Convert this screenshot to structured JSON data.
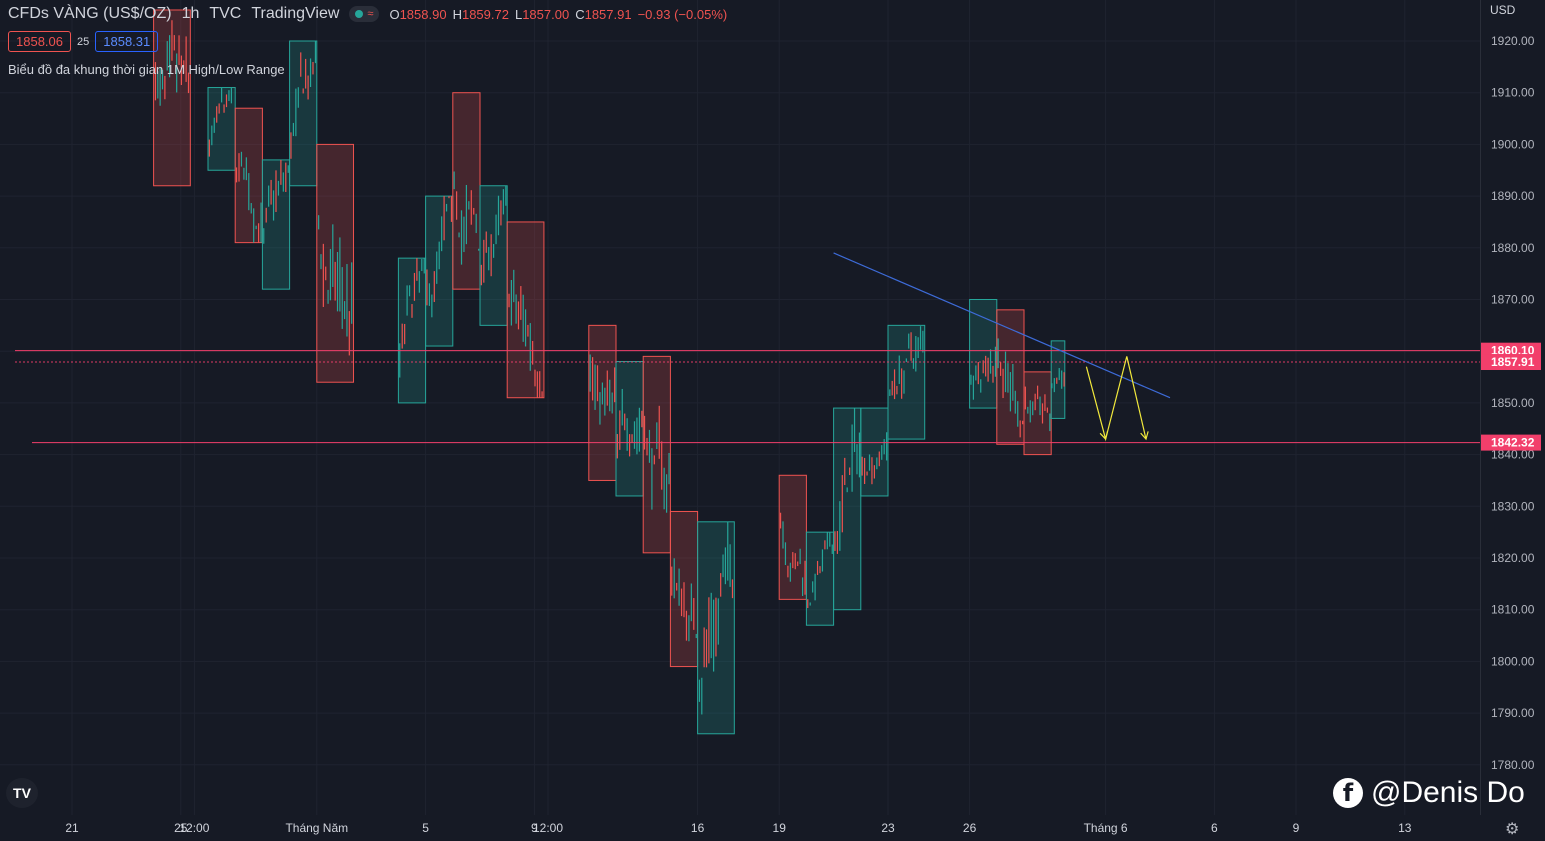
{
  "header": {
    "symbol": "CFDs VÀNG (US$/OZ)",
    "interval": "1h",
    "source": "TVC",
    "platform": "TradingView",
    "ohlc": {
      "o_label": "O",
      "o_value": "1858.90",
      "h_label": "H",
      "h_value": "1859.72",
      "l_label": "L",
      "l_value": "1857.00",
      "c_label": "C",
      "c_value": "1857.91",
      "change": "−0.93 (−0.05%)"
    },
    "sell_price": "1858.06",
    "spread": "25",
    "buy_price": "1858.31",
    "indicator": "Biểu đồ đa khung thời gian 1M High/Low Range"
  },
  "currency": "USD",
  "watermark": "@Denis Do",
  "colors": {
    "up": "#26a69a",
    "down": "#ef5350",
    "level_line": "#f23f6b",
    "trendline": "#3d6bd8",
    "arrows": "#f2e93c",
    "background": "#161a25",
    "grid": "#1f2330"
  },
  "icons": [
    "tradingview-logo-icon",
    "facebook-icon",
    "settings-gear-icon",
    "status-dot-icon",
    "wave-icon"
  ],
  "chart_data": {
    "type": "candlestick",
    "title": "CFDs VÀNG (US$/OZ) 1h",
    "ylim": [
      1775,
      1926
    ],
    "y_ticks": [
      1920,
      1910,
      1900,
      1890,
      1880,
      1870,
      1860,
      1850,
      1840,
      1830,
      1820,
      1810,
      1800,
      1790,
      1780
    ],
    "y_tick_labels": [
      "1920.00",
      "1910.00",
      "1900.00",
      "1890.00",
      "1880.00",
      "1870.00",
      "1860.00",
      "1850.00",
      "1840.00",
      "1830.00",
      "1820.00",
      "1810.00",
      "1800.00",
      "1790.00",
      "1780.00"
    ],
    "x_ticks": [
      "21",
      "25",
      "12:00",
      "Tháng Năm",
      "5",
      "9",
      "12:00",
      "16",
      "19",
      "23",
      "26",
      "Tháng 6",
      "6",
      "9",
      "13"
    ],
    "x_tick_positions_days": [
      0,
      4,
      4.5,
      9,
      13,
      17,
      17.5,
      23,
      26,
      30,
      33,
      38,
      42,
      45,
      49
    ],
    "last_bar_day": 36,
    "boxes": [
      {
        "open": "2021-04-24",
        "high": 1926,
        "low": 1892,
        "dir": "down"
      },
      {
        "open": "2021-04-26",
        "high": 1911,
        "low": 1895,
        "dir": "up"
      },
      {
        "open": "2021-04-27",
        "high": 1907,
        "low": 1881,
        "dir": "down"
      },
      {
        "open": "2021-04-28",
        "high": 1897,
        "low": 1872,
        "dir": "up"
      },
      {
        "open": "2021-04-29",
        "high": 1920,
        "low": 1892,
        "dir": "up"
      },
      {
        "open": "2021-04-30",
        "high": 1900,
        "low": 1854,
        "dir": "down"
      },
      {
        "open": "2021-05-03",
        "high": 1878,
        "low": 1850,
        "dir": "up"
      },
      {
        "open": "2021-05-04",
        "high": 1890,
        "low": 1861,
        "dir": "up"
      },
      {
        "open": "2021-05-05",
        "high": 1910,
        "low": 1872,
        "dir": "down"
      },
      {
        "open": "2021-05-06",
        "high": 1892,
        "low": 1865,
        "dir": "up"
      },
      {
        "open": "2021-05-07",
        "high": 1885,
        "low": 1851,
        "dir": "down"
      },
      {
        "open": "2021-05-10",
        "high": 1865,
        "low": 1835,
        "dir": "down"
      },
      {
        "open": "2021-05-11",
        "high": 1858,
        "low": 1832,
        "dir": "up"
      },
      {
        "open": "2021-05-12",
        "high": 1859,
        "low": 1821,
        "dir": "down"
      },
      {
        "open": "2021-05-13",
        "high": 1829,
        "low": 1799,
        "dir": "down"
      },
      {
        "open": "2021-05-14",
        "high": 1827,
        "low": 1786,
        "dir": "up"
      },
      {
        "open": "2021-05-17",
        "high": 1836,
        "low": 1812,
        "dir": "down"
      },
      {
        "open": "2021-05-18",
        "high": 1825,
        "low": 1807,
        "dir": "up"
      },
      {
        "open": "2021-05-19",
        "high": 1849,
        "low": 1810,
        "dir": "up"
      },
      {
        "open": "2021-05-20",
        "high": 1849,
        "low": 1832,
        "dir": "up"
      },
      {
        "open": "2021-05-21",
        "high": 1865,
        "low": 1843,
        "dir": "up"
      },
      {
        "open": "2021-05-24",
        "high": 1870,
        "low": 1849,
        "dir": "up"
      },
      {
        "open": "2021-05-25",
        "high": 1868,
        "low": 1842,
        "dir": "down"
      },
      {
        "open": "2021-05-26",
        "high": 1856,
        "low": 1840,
        "dir": "down"
      },
      {
        "open": "2021-05-27",
        "high": 1862,
        "low": 1847,
        "dir": "up"
      }
    ],
    "levels": [
      {
        "name": "resistance",
        "value": 1860.1,
        "label": "1860.10"
      },
      {
        "name": "support",
        "value": 1842.32,
        "label": "1842.32"
      },
      {
        "name": "last-price",
        "value": 1857.91,
        "label": "1857.91"
      }
    ],
    "trendline": {
      "start": {
        "date": "2021-05-19",
        "price": 1879
      },
      "end": {
        "date": "2021-05-31",
        "price": 1851
      }
    },
    "annotations": [
      {
        "type": "arrow-path",
        "points": [
          {
            "date": "2021-05-28",
            "price": 1857
          },
          {
            "date": "2021-05-29",
            "price": 1843
          },
          {
            "date": "2021-05-30",
            "price": 1859
          },
          {
            "date": "2021-05-31",
            "price": 1843
          }
        ]
      }
    ]
  }
}
